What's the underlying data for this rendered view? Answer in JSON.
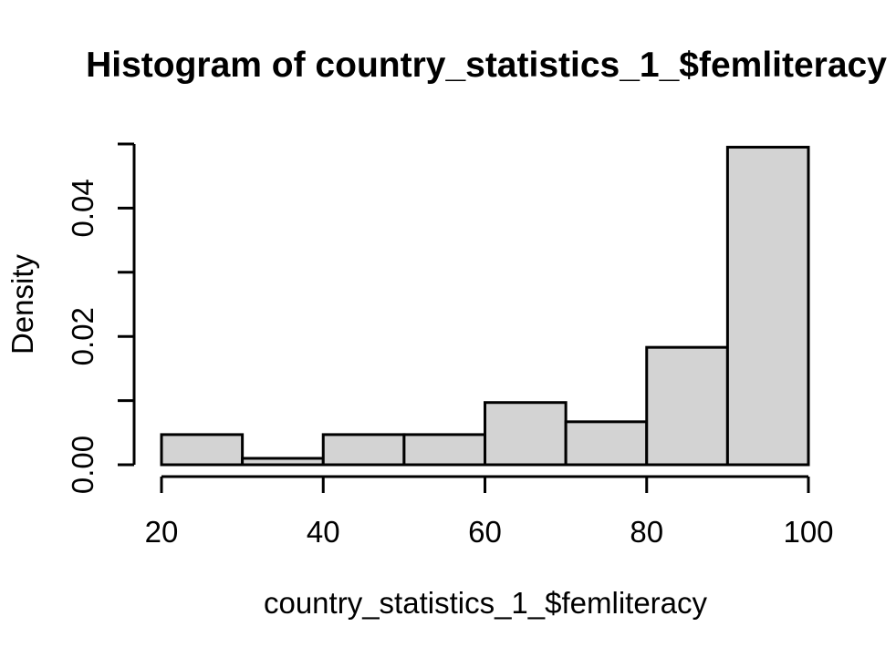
{
  "figure": {
    "background": "#ffffff"
  },
  "chart_data": {
    "type": "bar",
    "subtype": "histogram",
    "title": "Histogram of country_statistics_1_$femliteracy",
    "xlabel": "country_statistics_1_$femliteracy",
    "ylabel": "Density",
    "xlim": [
      20,
      100
    ],
    "ylim": [
      0,
      0.05
    ],
    "grid": false,
    "legend": null,
    "bar_fill": "#d3d3d3",
    "bar_border": "#000000",
    "axis_color": "#000000",
    "text_color": "#000000",
    "bins": [
      {
        "x0": 20,
        "x1": 30,
        "density": 0.0047
      },
      {
        "x0": 30,
        "x1": 40,
        "density": 0.001
      },
      {
        "x0": 40,
        "x1": 50,
        "density": 0.0047
      },
      {
        "x0": 50,
        "x1": 60,
        "density": 0.0047
      },
      {
        "x0": 60,
        "x1": 70,
        "density": 0.0097
      },
      {
        "x0": 70,
        "x1": 80,
        "density": 0.0067
      },
      {
        "x0": 80,
        "x1": 90,
        "density": 0.0183
      },
      {
        "x0": 90,
        "x1": 100,
        "density": 0.0495
      }
    ],
    "x_ticks": [
      {
        "value": 20,
        "label": "20"
      },
      {
        "value": 40,
        "label": "40"
      },
      {
        "value": 60,
        "label": "60"
      },
      {
        "value": 80,
        "label": "80"
      },
      {
        "value": 100,
        "label": "100"
      }
    ],
    "y_ticks": [
      {
        "value": 0.0,
        "label": "0.00"
      },
      {
        "value": 0.01,
        "label": ""
      },
      {
        "value": 0.02,
        "label": "0.02"
      },
      {
        "value": 0.03,
        "label": ""
      },
      {
        "value": 0.04,
        "label": "0.04"
      },
      {
        "value": 0.05,
        "label": ""
      }
    ]
  }
}
